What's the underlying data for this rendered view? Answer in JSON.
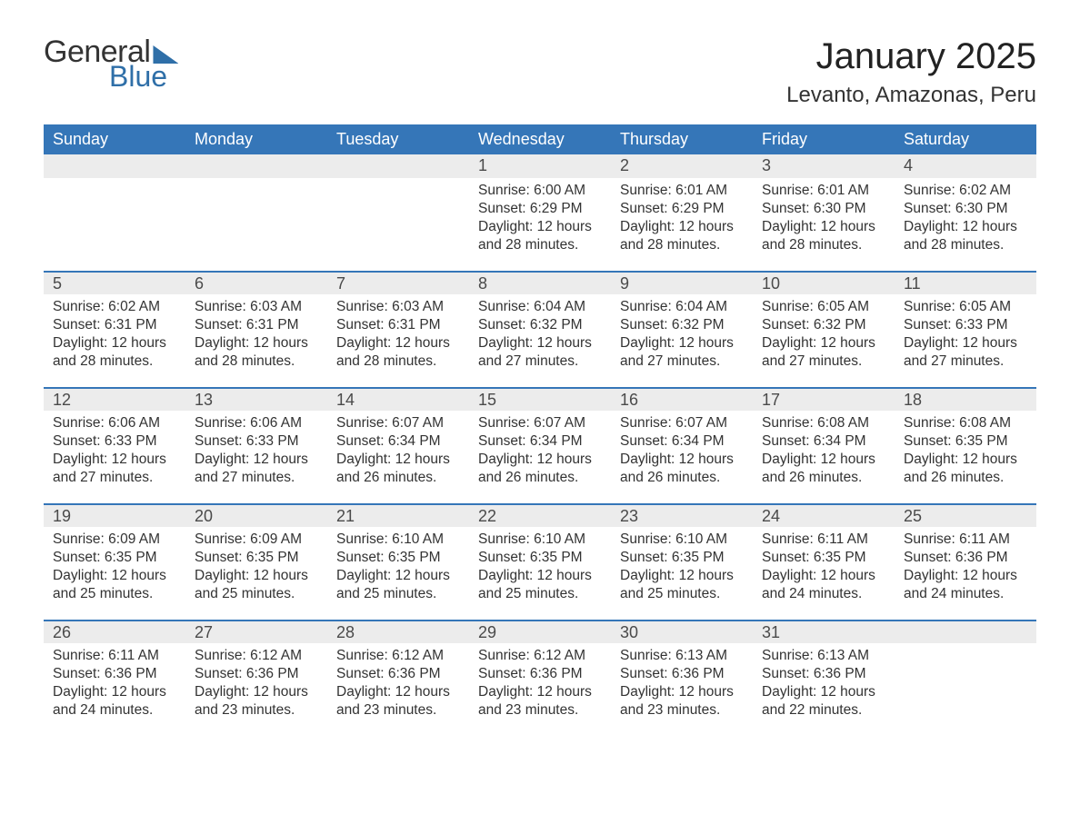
{
  "colors": {
    "brand_blue": "#3576b8",
    "logo_blue": "#2f6fa8",
    "header_text": "#ffffff",
    "daynum_bg": "#ececec",
    "daynum_border": "#3576b8",
    "body_text": "#333333",
    "page_bg": "#ffffff"
  },
  "logo": {
    "line1": "General",
    "line2": "Blue"
  },
  "title": "January 2025",
  "subtitle": "Levanto, Amazonas, Peru",
  "weekday_headers": [
    "Sunday",
    "Monday",
    "Tuesday",
    "Wednesday",
    "Thursday",
    "Friday",
    "Saturday"
  ],
  "layout": {
    "columns": 7,
    "rows": 5,
    "daynum_fontsize": 18,
    "detail_fontsize": 15.5,
    "header_fontsize": 18,
    "title_fontsize": 40,
    "subtitle_fontsize": 24
  },
  "weeks": [
    [
      {
        "blank": true
      },
      {
        "blank": true
      },
      {
        "blank": true
      },
      {
        "day": 1,
        "sunrise": "6:00 AM",
        "sunset": "6:29 PM",
        "daylight": "12 hours and 28 minutes."
      },
      {
        "day": 2,
        "sunrise": "6:01 AM",
        "sunset": "6:29 PM",
        "daylight": "12 hours and 28 minutes."
      },
      {
        "day": 3,
        "sunrise": "6:01 AM",
        "sunset": "6:30 PM",
        "daylight": "12 hours and 28 minutes."
      },
      {
        "day": 4,
        "sunrise": "6:02 AM",
        "sunset": "6:30 PM",
        "daylight": "12 hours and 28 minutes."
      }
    ],
    [
      {
        "day": 5,
        "sunrise": "6:02 AM",
        "sunset": "6:31 PM",
        "daylight": "12 hours and 28 minutes."
      },
      {
        "day": 6,
        "sunrise": "6:03 AM",
        "sunset": "6:31 PM",
        "daylight": "12 hours and 28 minutes."
      },
      {
        "day": 7,
        "sunrise": "6:03 AM",
        "sunset": "6:31 PM",
        "daylight": "12 hours and 28 minutes."
      },
      {
        "day": 8,
        "sunrise": "6:04 AM",
        "sunset": "6:32 PM",
        "daylight": "12 hours and 27 minutes."
      },
      {
        "day": 9,
        "sunrise": "6:04 AM",
        "sunset": "6:32 PM",
        "daylight": "12 hours and 27 minutes."
      },
      {
        "day": 10,
        "sunrise": "6:05 AM",
        "sunset": "6:32 PM",
        "daylight": "12 hours and 27 minutes."
      },
      {
        "day": 11,
        "sunrise": "6:05 AM",
        "sunset": "6:33 PM",
        "daylight": "12 hours and 27 minutes."
      }
    ],
    [
      {
        "day": 12,
        "sunrise": "6:06 AM",
        "sunset": "6:33 PM",
        "daylight": "12 hours and 27 minutes."
      },
      {
        "day": 13,
        "sunrise": "6:06 AM",
        "sunset": "6:33 PM",
        "daylight": "12 hours and 27 minutes."
      },
      {
        "day": 14,
        "sunrise": "6:07 AM",
        "sunset": "6:34 PM",
        "daylight": "12 hours and 26 minutes."
      },
      {
        "day": 15,
        "sunrise": "6:07 AM",
        "sunset": "6:34 PM",
        "daylight": "12 hours and 26 minutes."
      },
      {
        "day": 16,
        "sunrise": "6:07 AM",
        "sunset": "6:34 PM",
        "daylight": "12 hours and 26 minutes."
      },
      {
        "day": 17,
        "sunrise": "6:08 AM",
        "sunset": "6:34 PM",
        "daylight": "12 hours and 26 minutes."
      },
      {
        "day": 18,
        "sunrise": "6:08 AM",
        "sunset": "6:35 PM",
        "daylight": "12 hours and 26 minutes."
      }
    ],
    [
      {
        "day": 19,
        "sunrise": "6:09 AM",
        "sunset": "6:35 PM",
        "daylight": "12 hours and 25 minutes."
      },
      {
        "day": 20,
        "sunrise": "6:09 AM",
        "sunset": "6:35 PM",
        "daylight": "12 hours and 25 minutes."
      },
      {
        "day": 21,
        "sunrise": "6:10 AM",
        "sunset": "6:35 PM",
        "daylight": "12 hours and 25 minutes."
      },
      {
        "day": 22,
        "sunrise": "6:10 AM",
        "sunset": "6:35 PM",
        "daylight": "12 hours and 25 minutes."
      },
      {
        "day": 23,
        "sunrise": "6:10 AM",
        "sunset": "6:35 PM",
        "daylight": "12 hours and 25 minutes."
      },
      {
        "day": 24,
        "sunrise": "6:11 AM",
        "sunset": "6:35 PM",
        "daylight": "12 hours and 24 minutes."
      },
      {
        "day": 25,
        "sunrise": "6:11 AM",
        "sunset": "6:36 PM",
        "daylight": "12 hours and 24 minutes."
      }
    ],
    [
      {
        "day": 26,
        "sunrise": "6:11 AM",
        "sunset": "6:36 PM",
        "daylight": "12 hours and 24 minutes."
      },
      {
        "day": 27,
        "sunrise": "6:12 AM",
        "sunset": "6:36 PM",
        "daylight": "12 hours and 23 minutes."
      },
      {
        "day": 28,
        "sunrise": "6:12 AM",
        "sunset": "6:36 PM",
        "daylight": "12 hours and 23 minutes."
      },
      {
        "day": 29,
        "sunrise": "6:12 AM",
        "sunset": "6:36 PM",
        "daylight": "12 hours and 23 minutes."
      },
      {
        "day": 30,
        "sunrise": "6:13 AM",
        "sunset": "6:36 PM",
        "daylight": "12 hours and 23 minutes."
      },
      {
        "day": 31,
        "sunrise": "6:13 AM",
        "sunset": "6:36 PM",
        "daylight": "12 hours and 22 minutes."
      },
      {
        "blank": true
      }
    ]
  ],
  "labels": {
    "sunrise_prefix": "Sunrise: ",
    "sunset_prefix": "Sunset: ",
    "daylight_prefix": "Daylight: "
  }
}
